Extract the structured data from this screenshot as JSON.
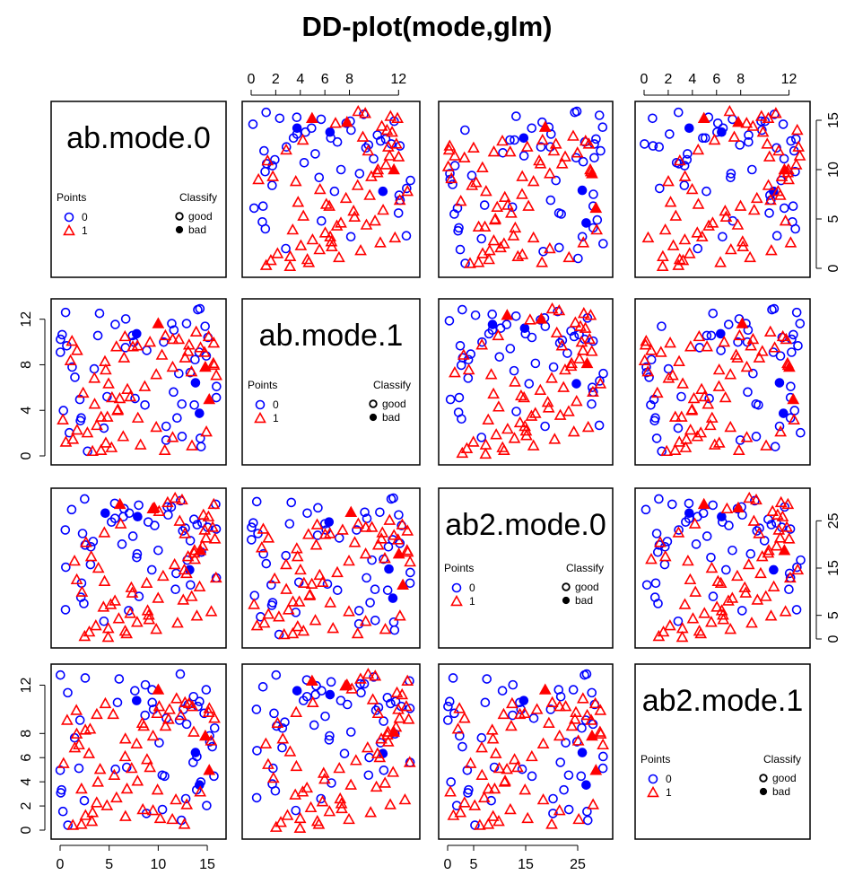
{
  "title": "DD-plot(mode,glm)",
  "chart_data": {
    "type": "scatter",
    "title": "DD-plot(mode,glm)",
    "variables": [
      "ab.mode.0",
      "ab.mode.1",
      "ab2.mode.0",
      "ab2.mode.1"
    ],
    "axis_ticks": {
      "ab.mode.0": [
        0,
        5,
        10,
        15
      ],
      "ab.mode.1": [
        0,
        2,
        4,
        6,
        8,
        12
      ],
      "ab2.mode.0": [
        0,
        5,
        15,
        25
      ],
      "ab2.mode.1": [
        0,
        2,
        4,
        6,
        8,
        12
      ]
    },
    "axis_ticks_left": {
      "ab.mode.1": [
        0,
        4,
        8,
        12
      ],
      "ab2.mode.1": [
        0,
        2,
        4,
        6,
        8,
        12
      ]
    },
    "legend": {
      "points_title": "Points",
      "classify_title": "Classify",
      "points": [
        {
          "label": "0",
          "color": "#0000ff",
          "shape": "circle"
        },
        {
          "label": "1",
          "color": "#ff0000",
          "shape": "triangle"
        }
      ],
      "classify": [
        {
          "label": "good",
          "style": "open"
        },
        {
          "label": "bad",
          "style": "filled"
        }
      ]
    },
    "series": [
      {
        "name": "0",
        "color": "#0000ff",
        "good": [
          [
            15.8,
            0.5
          ],
          [
            11.0,
            1.0
          ],
          [
            13.2,
            2.5
          ],
          [
            10.7,
            3.2
          ],
          [
            13.2,
            5.5
          ],
          [
            7.8,
            5.5
          ],
          [
            14.7,
            6.3
          ],
          [
            3.2,
            6.4
          ],
          [
            9.6,
            6.9
          ],
          [
            14.9,
            9.6
          ],
          [
            12.2,
            10.8
          ],
          [
            11.1,
            11.2
          ],
          [
            12.6,
            12.6
          ],
          [
            12.4,
            13.1
          ],
          [
            14.6,
            14.0
          ],
          [
            3.3,
            13.0
          ],
          [
            4.7,
            14.2
          ],
          [
            6.1,
            13.0
          ],
          [
            8.9,
            12.3
          ],
          [
            10.4,
            2.1
          ],
          [
            8.4,
            1.7
          ],
          [
            15.3,
            3.8
          ],
          [
            12.8,
            7.5
          ],
          [
            14.0,
            8.5
          ],
          [
            15.6,
            9.4
          ],
          [
            13.5,
            10.4
          ],
          [
            6.9,
            12.3
          ],
          [
            11.9,
            14.3
          ],
          [
            15.2,
            15.5
          ],
          [
            12.3,
            15.8
          ],
          [
            10.0,
            8.9
          ],
          [
            2.0,
            3.0
          ],
          [
            4.8,
            6.2
          ],
          [
            9.2,
            5.6
          ],
          [
            13.1,
            11.9
          ],
          [
            14.2,
            4.1
          ],
          [
            11.6,
            4.1
          ],
          [
            13.6,
            1.9
          ],
          [
            5.6,
            11.7
          ],
          [
            7.4,
            11.4
          ],
          [
            9.8,
            13.6
          ],
          [
            12.9,
            12.8
          ],
          [
            13.8,
            4.9
          ],
          [
            15.1,
            6.1
          ],
          [
            8.1,
            14.3
          ],
          [
            10.6,
            15.9
          ],
          [
            4.0,
            15.4
          ],
          [
            6.3,
            14.8
          ],
          [
            12.5,
            9.0
          ],
          [
            14.9,
            11.2
          ]
        ],
        "bad": [
          [
            7.8,
            13.2
          ],
          [
            13.8,
            7.9
          ],
          [
            14.2,
            4.6
          ]
        ]
      },
      {
        "name": "1",
        "color": "#ff0000",
        "good": [
          [
            0.3,
            0.5
          ],
          [
            0.8,
            0.6
          ],
          [
            1.5,
            0.9
          ],
          [
            1.2,
            1.8
          ],
          [
            2.3,
            2.5
          ],
          [
            2.9,
            3.3
          ],
          [
            3.6,
            4.2
          ],
          [
            4.3,
            5.0
          ],
          [
            5.2,
            6.4
          ],
          [
            6.3,
            7.5
          ],
          [
            7.1,
            8.8
          ],
          [
            8.4,
            9.6
          ],
          [
            9.3,
            10.6
          ],
          [
            10.5,
            11.7
          ],
          [
            11.3,
            12.6
          ],
          [
            12.6,
            12.0
          ],
          [
            13.8,
            11.2
          ],
          [
            14.4,
            9.8
          ],
          [
            15.4,
            10.3
          ],
          [
            15.7,
            11.4
          ],
          [
            1.1,
            8.4
          ],
          [
            1.8,
            10.2
          ],
          [
            2.6,
            11.8
          ],
          [
            3.1,
            12.9
          ],
          [
            2.2,
            6.2
          ],
          [
            4.4,
            9.3
          ],
          [
            5.9,
            10.6
          ],
          [
            6.9,
            11.9
          ],
          [
            7.8,
            12.3
          ],
          [
            9.0,
            13.0
          ],
          [
            10.0,
            12.6
          ],
          [
            11.4,
            13.4
          ],
          [
            12.3,
            12.9
          ],
          [
            14.0,
            12.4
          ],
          [
            0.6,
            4.2
          ],
          [
            1.9,
            4.9
          ],
          [
            3.2,
            5.6
          ],
          [
            4.6,
            6.3
          ],
          [
            5.8,
            7.2
          ],
          [
            6.5,
            4.1
          ],
          [
            8.0,
            3.1
          ],
          [
            9.3,
            2.0
          ],
          [
            10.9,
            1.1
          ],
          [
            12.0,
            2.6
          ],
          [
            13.0,
            3.9
          ],
          [
            14.7,
            6.8
          ],
          [
            15.9,
            8.7
          ],
          [
            0.2,
            1.5
          ],
          [
            3.9,
            1.4
          ],
          [
            5.3,
            2.1
          ],
          [
            6.7,
            1.2
          ],
          [
            8.8,
            0.6
          ],
          [
            2.7,
            7.8
          ],
          [
            4.8,
            11.8
          ],
          [
            7.4,
            10.9
          ],
          [
            9.7,
            11.3
          ],
          [
            11.9,
            10.0
          ],
          [
            13.3,
            9.1
          ],
          [
            15.2,
            12.2
          ],
          [
            0.9,
            2.8
          ]
        ],
        "bad": [
          [
            14.8,
            9.6
          ],
          [
            10.0,
            14.3
          ],
          [
            15.2,
            6.1
          ]
        ]
      }
    ]
  }
}
